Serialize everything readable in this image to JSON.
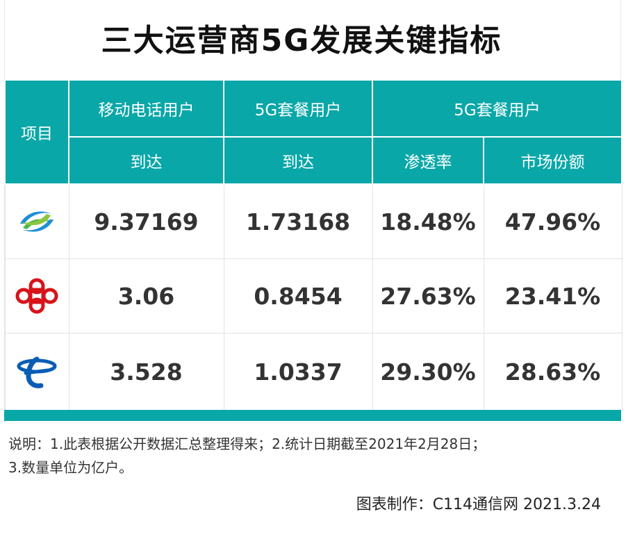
{
  "title": "三大运营商5G发展关键指标",
  "header": {
    "item": "项目",
    "col1_top": "移动电话用户",
    "col1_sub": "到达",
    "col2_top": "5G套餐用户",
    "col2_sub": "到达",
    "col3_top": "5G套餐用户",
    "col3_sub_a": "渗透率",
    "col3_sub_b": "市场份额"
  },
  "rows": [
    {
      "logo": "china-mobile-logo-icon",
      "mobile_users": "9.37169",
      "fiveg_users": "1.73168",
      "penetration": "18.48%",
      "share": "47.96%"
    },
    {
      "logo": "china-unicom-logo-icon",
      "mobile_users": "3.06",
      "fiveg_users": "0.8454",
      "penetration": "27.63%",
      "share": "23.41%"
    },
    {
      "logo": "china-telecom-logo-icon",
      "mobile_users": "3.528",
      "fiveg_users": "1.0337",
      "penetration": "29.30%",
      "share": "28.63%"
    }
  ],
  "note_line1": "说明：1.此表根据公开数据汇总整理得来；2.统计日期截至2021年2月28日；",
  "note_line2": "3.数量单位为亿户。",
  "credit": "图表制作：C114通信网  2021.3.24",
  "colors": {
    "header_bg": "#0aa7a8",
    "text": "#333333"
  }
}
